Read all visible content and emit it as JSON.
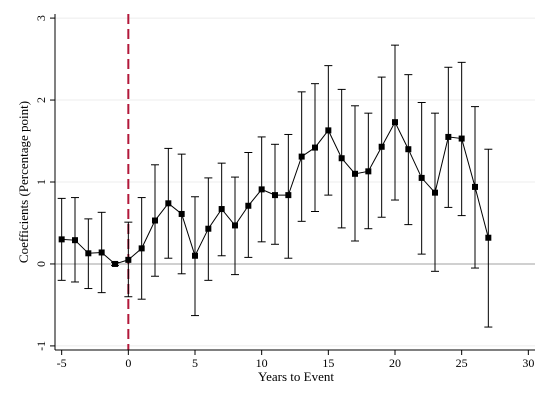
{
  "chart_data": {
    "type": "scatter",
    "title": "",
    "xlabel": "Years to Event",
    "ylabel": "Coefficients (Percentage point)",
    "xlim": [
      -5.5,
      30.5
    ],
    "ylim": [
      -1.05,
      3.05
    ],
    "xticks": [
      -5,
      0,
      5,
      10,
      15,
      20,
      25,
      30
    ],
    "xtick_labels": [
      "-5",
      "0",
      "5",
      "10",
      "15",
      "20",
      "25",
      "30"
    ],
    "yticks": [
      -1,
      0,
      1,
      2,
      3
    ],
    "ytick_labels": [
      "-1",
      "0",
      "1",
      "2",
      "3"
    ],
    "grid": "horizontal",
    "reference_lines": {
      "y": 0,
      "x": 0
    },
    "colors": {
      "series": "#000000",
      "zero_line": "#a0a0a0",
      "event_line": "#b2183a",
      "grid": "#ececec"
    },
    "series": [
      {
        "x": [
          -5,
          -4,
          -3,
          -2,
          -1,
          0,
          1,
          2,
          3,
          4,
          5,
          6,
          7,
          8,
          9,
          10,
          11,
          12,
          13,
          14,
          15,
          16,
          17,
          18,
          19,
          20,
          21,
          22,
          23,
          24,
          25,
          26,
          27
        ],
        "y": [
          0.3,
          0.29,
          0.13,
          0.14,
          0.0,
          0.05,
          0.19,
          0.53,
          0.74,
          0.61,
          0.1,
          0.43,
          0.67,
          0.47,
          0.71,
          0.91,
          0.84,
          0.84,
          1.31,
          1.42,
          1.63,
          1.29,
          1.1,
          1.13,
          1.43,
          1.73,
          1.4,
          1.05,
          0.87,
          1.55,
          1.53,
          0.94,
          0.32
        ],
        "ci_low": [
          -0.2,
          -0.22,
          -0.3,
          -0.35,
          -0.02,
          -0.4,
          -0.43,
          -0.15,
          0.07,
          -0.12,
          -0.63,
          -0.2,
          0.1,
          -0.13,
          0.08,
          0.27,
          0.24,
          0.07,
          0.52,
          0.64,
          0.84,
          0.44,
          0.28,
          0.43,
          0.57,
          0.78,
          0.48,
          0.12,
          -0.09,
          0.69,
          0.59,
          -0.05,
          -0.77
        ],
        "ci_high": [
          0.8,
          0.81,
          0.55,
          0.63,
          0.02,
          0.51,
          0.81,
          1.21,
          1.41,
          1.34,
          0.82,
          1.05,
          1.23,
          1.06,
          1.36,
          1.55,
          1.46,
          1.58,
          2.1,
          2.2,
          2.42,
          2.13,
          1.93,
          1.84,
          2.28,
          2.67,
          2.31,
          1.97,
          1.84,
          2.4,
          2.46,
          1.92,
          1.4
        ]
      }
    ]
  }
}
